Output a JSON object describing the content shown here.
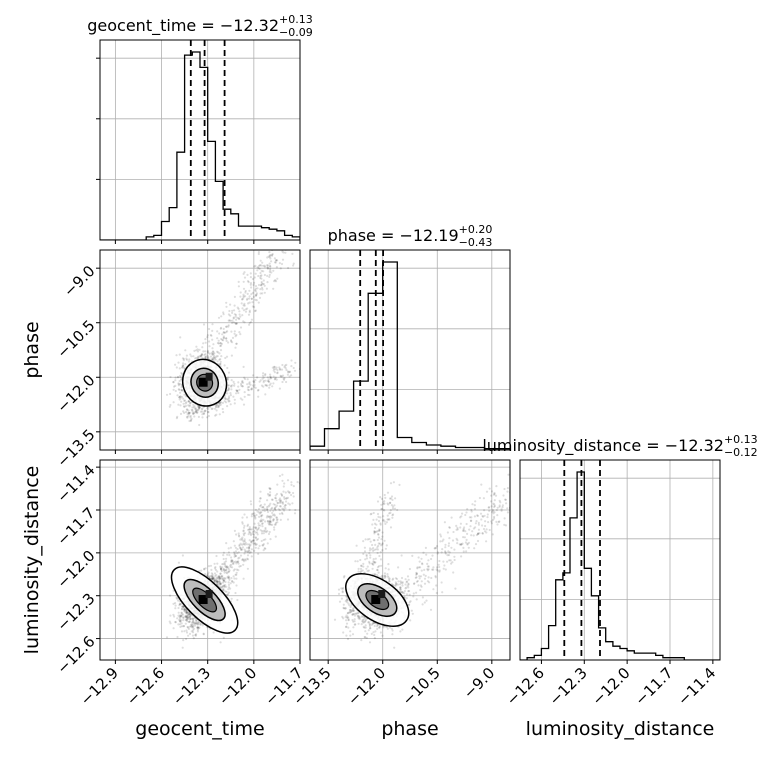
{
  "chart_data": {
    "type": "corner",
    "parameters": [
      "geocent_time",
      "phase",
      "luminosity_distance"
    ],
    "titles": [
      {
        "name": "geocent_time",
        "median": "−12.32",
        "plus": "+0.13",
        "minus": "−0.09"
      },
      {
        "name": "phase",
        "median": "−12.19",
        "plus": "+0.20",
        "minus": "−0.43"
      },
      {
        "name": "luminosity_distance",
        "median": "−12.32",
        "plus": "+0.13",
        "minus": "−0.12"
      }
    ],
    "ranges": [
      [
        -13.0,
        -11.7
      ],
      [
        -14.0,
        -8.5
      ],
      [
        -12.75,
        -11.35
      ]
    ],
    "ticks": {
      "geocent_time": [
        -12.9,
        -12.6,
        -12.3,
        -12.0,
        -11.7
      ],
      "phase": [
        -13.5,
        -12.0,
        -10.5,
        -9.0
      ],
      "luminosity_distance": [
        -12.6,
        -12.3,
        -12.0,
        -11.7,
        -11.4
      ]
    },
    "tick_labels": {
      "geocent_time": [
        "−12.9",
        "−12.6",
        "−12.3",
        "−12.0",
        "−11.7"
      ],
      "phase_x": [
        "−13.5",
        "−12.0",
        "−10.5",
        "−9.0"
      ],
      "phase_y": [
        "−13.5",
        "−12.0",
        "−10.5",
        "−9.0"
      ],
      "luminosity_distance_x": [
        "−12.6",
        "−12.3",
        "−12.0",
        "−11.7",
        "−11.4"
      ],
      "luminosity_distance_y": [
        "−12.6",
        "−12.3",
        "−12.0",
        "−11.7",
        "−11.4"
      ]
    },
    "quantile_lines": {
      "geocent_time": [
        -12.41,
        -12.32,
        -12.19
      ],
      "phase": [
        -12.62,
        -12.19,
        -11.99
      ],
      "luminosity_distance": [
        -12.44,
        -12.32,
        -12.19
      ]
    },
    "histograms": {
      "geocent_time": {
        "edges": [
          -13.0,
          -12.95,
          -12.9,
          -12.85,
          -12.8,
          -12.75,
          -12.7,
          -12.65,
          -12.6,
          -12.55,
          -12.5,
          -12.45,
          -12.4,
          -12.35,
          -12.3,
          -12.25,
          -12.2,
          -12.15,
          -12.1,
          -12.05,
          -12.0,
          -11.95,
          -11.9,
          -11.85,
          -11.8,
          -11.75,
          -11.7
        ],
        "counts": [
          0,
          0,
          0,
          0,
          0,
          0,
          2,
          3,
          12,
          21,
          57,
          120,
          122,
          112,
          64,
          38,
          20,
          17,
          9,
          9,
          9,
          8,
          7,
          6,
          3,
          2
        ]
      },
      "phase": {
        "edges": [
          -14.0,
          -13.6,
          -13.2,
          -12.8,
          -12.4,
          -12.0,
          -11.6,
          -11.2,
          -10.8,
          -10.4,
          -10.0,
          -9.6,
          -9.2,
          -8.8,
          -8.5
        ],
        "counts": [
          3,
          17,
          31,
          55,
          125,
          150,
          10,
          6,
          4,
          3,
          2,
          2,
          1,
          1
        ]
      },
      "luminosity_distance": {
        "edges": [
          -12.75,
          -12.7,
          -12.65,
          -12.6,
          -12.55,
          -12.5,
          -12.45,
          -12.4,
          -12.35,
          -12.3,
          -12.25,
          -12.2,
          -12.15,
          -12.1,
          -12.05,
          -12.0,
          -11.95,
          -11.9,
          -11.85,
          -11.8,
          -11.75,
          -11.7,
          -11.65,
          -11.6,
          -11.55,
          -11.5,
          -11.45,
          -11.4,
          -11.35
        ],
        "counts": [
          0,
          1,
          2,
          5,
          15,
          35,
          38,
          62,
          82,
          40,
          28,
          14,
          8,
          6,
          5,
          4,
          3,
          3,
          3,
          2,
          1,
          1,
          1,
          0,
          0,
          0,
          0,
          0
        ]
      }
    },
    "colors": {
      "axes": "#000000",
      "grid": "#b0b0b0",
      "points": "#000000",
      "hist": "#000000"
    }
  }
}
